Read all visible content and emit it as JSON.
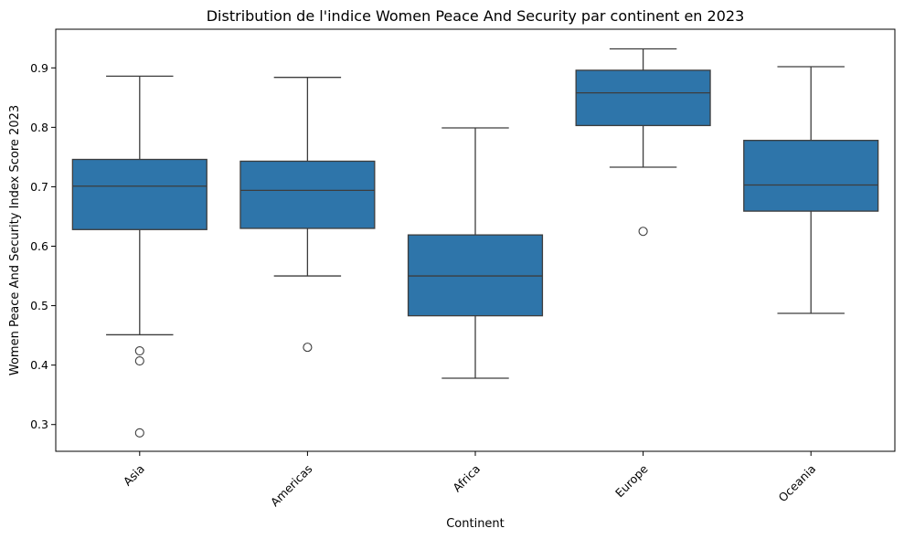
{
  "chart_data": {
    "type": "box",
    "title": "Distribution de l'indice Women Peace And Security par continent en 2023",
    "xlabel": "Continent",
    "ylabel": "Women Peace And Security Index Score 2023",
    "ylim": [
      0.255,
      0.965
    ],
    "yticks": [
      0.3,
      0.4,
      0.5,
      0.6,
      0.7,
      0.8,
      0.9
    ],
    "ytick_labels": [
      "0.3",
      "0.4",
      "0.5",
      "0.6",
      "0.7",
      "0.8",
      "0.9"
    ],
    "categories": [
      "Asia",
      "Americas",
      "Africa",
      "Europe",
      "Oceania"
    ],
    "series": [
      {
        "category": "Asia",
        "q1": 0.628,
        "median": 0.701,
        "q3": 0.746,
        "whisker_low": 0.451,
        "whisker_high": 0.886,
        "outliers": [
          0.424,
          0.407,
          0.286
        ]
      },
      {
        "category": "Americas",
        "q1": 0.63,
        "median": 0.694,
        "q3": 0.743,
        "whisker_low": 0.55,
        "whisker_high": 0.884,
        "outliers": [
          0.43
        ]
      },
      {
        "category": "Africa",
        "q1": 0.483,
        "median": 0.55,
        "q3": 0.619,
        "whisker_low": 0.378,
        "whisker_high": 0.799,
        "outliers": []
      },
      {
        "category": "Europe",
        "q1": 0.803,
        "median": 0.858,
        "q3": 0.896,
        "whisker_low": 0.733,
        "whisker_high": 0.932,
        "outliers": [
          0.625
        ]
      },
      {
        "category": "Oceania",
        "q1": 0.659,
        "median": 0.703,
        "q3": 0.778,
        "whisker_low": 0.487,
        "whisker_high": 0.902,
        "outliers": []
      }
    ],
    "colors": {
      "box_fill": "#2e75aa",
      "line": "#3d3d3d"
    },
    "grid": false,
    "legend": false
  }
}
